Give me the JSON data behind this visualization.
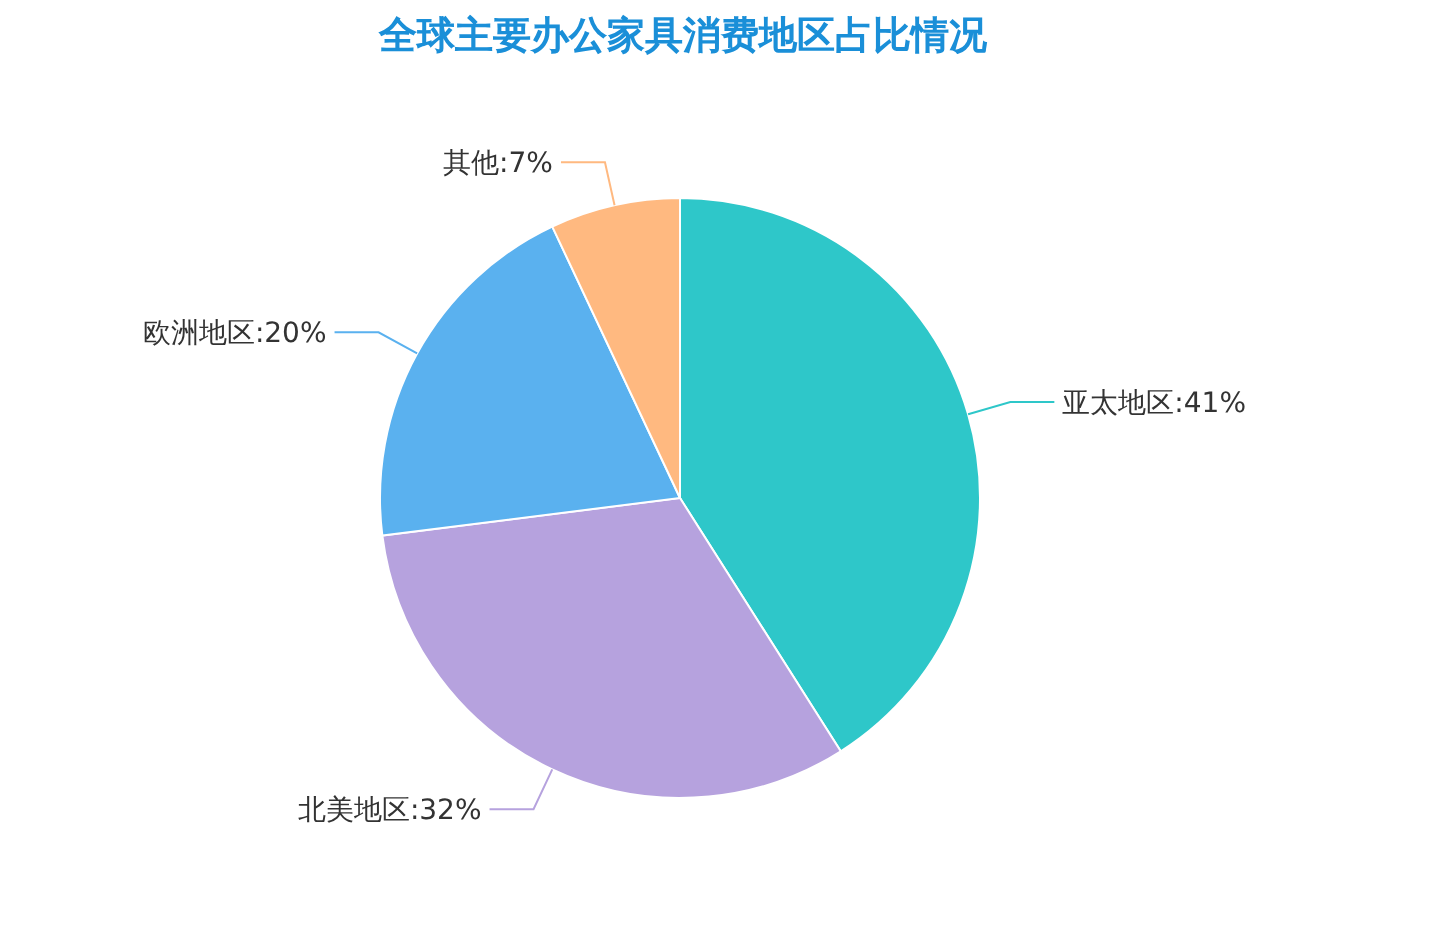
{
  "chart_data": {
    "type": "pie",
    "title": "全球主要办公家具消费地区占比情况",
    "categories": [
      "亚太地区",
      "北美地区",
      "欧洲地区",
      "其他"
    ],
    "values": [
      41,
      32,
      20,
      7
    ],
    "colors": [
      "#2ec7c9",
      "#b6a2de",
      "#5ab1ef",
      "#ffb980"
    ],
    "value_labels": [
      "41%",
      "32%",
      "20%",
      "7%"
    ]
  }
}
